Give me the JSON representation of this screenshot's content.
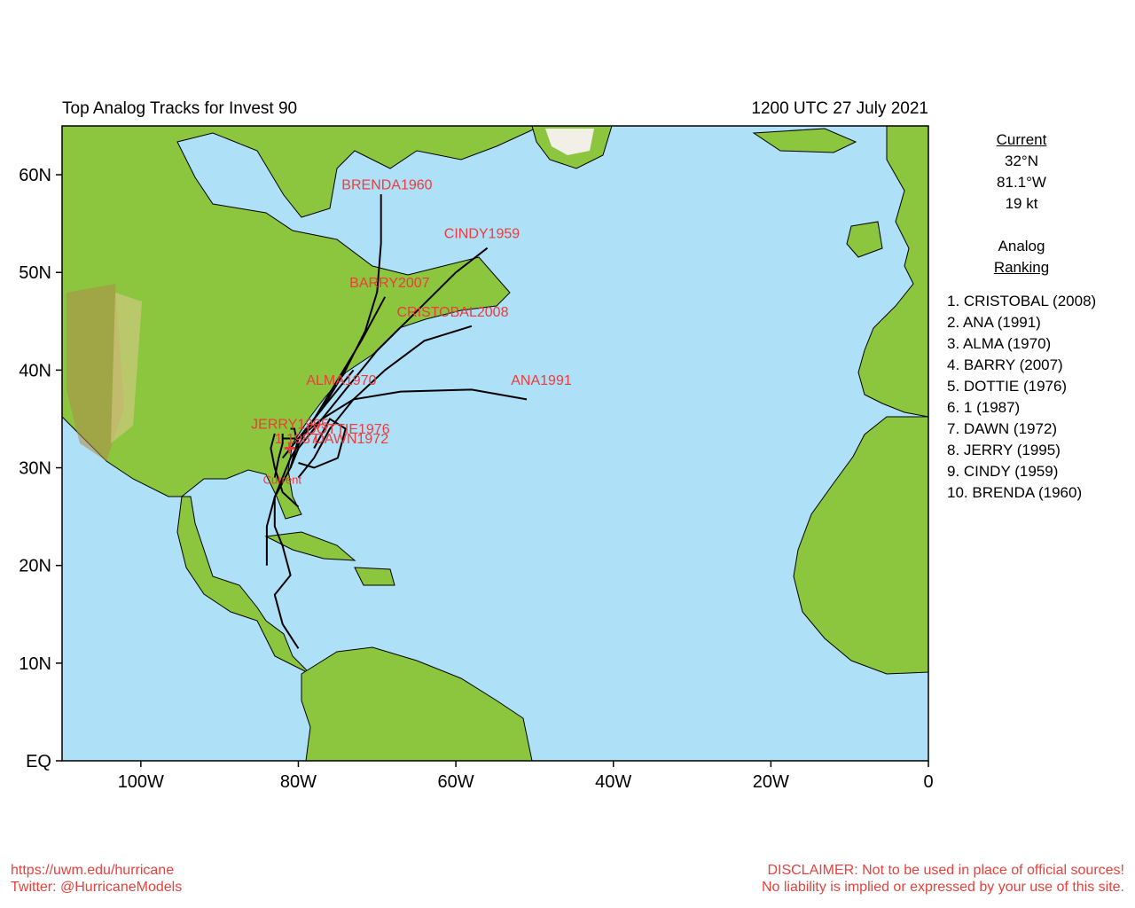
{
  "header": {
    "title": "Top Analog Tracks for Invest 90",
    "datetime": "1200 UTC 27 July 2021"
  },
  "map": {
    "extent": {
      "lon_min": -110,
      "lon_max": 0,
      "lat_min": 0,
      "lat_max": 65
    },
    "lat_ticks": [
      {
        "lat": 60,
        "label": "60N"
      },
      {
        "lat": 50,
        "label": "50N"
      },
      {
        "lat": 40,
        "label": "40N"
      },
      {
        "lat": 30,
        "label": "30N"
      },
      {
        "lat": 20,
        "label": "20N"
      },
      {
        "lat": 10,
        "label": "10N"
      },
      {
        "lat": 0,
        "label": "EQ"
      }
    ],
    "lon_ticks": [
      {
        "lon": -100,
        "label": "100W"
      },
      {
        "lon": -80,
        "label": "80W"
      },
      {
        "lon": -60,
        "label": "60W"
      },
      {
        "lon": -40,
        "label": "40W"
      },
      {
        "lon": -20,
        "label": "20W"
      },
      {
        "lon": 0,
        "label": "0"
      }
    ],
    "colors": {
      "ocean": "#aee0f8",
      "land": "#8cc63f",
      "track": "#000000",
      "label": "#ee3b3b"
    },
    "current_label": "Current",
    "current_position": {
      "lat": 32.0,
      "lon": -81.1
    }
  },
  "tracks": [
    {
      "name": "BRENDA1960",
      "label_at": [
        -74.5,
        58.5
      ],
      "points": [
        [
          -82,
          31
        ],
        [
          -80,
          33
        ],
        [
          -77,
          36
        ],
        [
          -74,
          40
        ],
        [
          -71.5,
          44
        ],
        [
          -70,
          48
        ],
        [
          -69.5,
          53
        ],
        [
          -69.5,
          58
        ]
      ]
    },
    {
      "name": "CINDY1959",
      "label_at": [
        -61.5,
        53.5
      ],
      "points": [
        [
          -82,
          33
        ],
        [
          -80,
          33
        ],
        [
          -77,
          35
        ],
        [
          -74,
          38
        ],
        [
          -70,
          42
        ],
        [
          -65,
          46
        ],
        [
          -60,
          50
        ],
        [
          -56,
          52.5
        ]
      ]
    },
    {
      "name": "BARRY2007",
      "label_at": [
        -73.5,
        48.5
      ],
      "points": [
        [
          -84,
          20
        ],
        [
          -84,
          24
        ],
        [
          -83,
          27
        ],
        [
          -81,
          31
        ],
        [
          -78,
          35
        ],
        [
          -75,
          39
        ],
        [
          -72,
          43
        ],
        [
          -70,
          46
        ],
        [
          -69,
          47.5
        ]
      ]
    },
    {
      "name": "CRISTOBAL2008",
      "label_at": [
        -67.5,
        45.5
      ],
      "points": [
        [
          -80,
          29
        ],
        [
          -78,
          31
        ],
        [
          -76,
          34
        ],
        [
          -73,
          37
        ],
        [
          -69,
          40
        ],
        [
          -64,
          43
        ],
        [
          -58,
          44.5
        ]
      ]
    },
    {
      "name": "ANA1991",
      "label_at": [
        -53,
        38.5
      ],
      "points": [
        [
          -81,
          30
        ],
        [
          -80,
          32
        ],
        [
          -77,
          35
        ],
        [
          -73,
          37
        ],
        [
          -67,
          37.8
        ],
        [
          -58,
          38
        ],
        [
          -51,
          37
        ]
      ]
    },
    {
      "name": "ALMA1970",
      "label_at": [
        -79,
        38.5
      ],
      "points": [
        [
          -80,
          11.5
        ],
        [
          -82,
          14
        ],
        [
          -83,
          17
        ],
        [
          -81,
          19
        ],
        [
          -82,
          22
        ],
        [
          -83,
          24
        ],
        [
          -83,
          27
        ],
        [
          -81,
          30
        ],
        [
          -80,
          33
        ],
        [
          -77,
          36
        ],
        [
          -75,
          38
        ],
        [
          -73,
          40
        ]
      ]
    },
    {
      "name": "DOTTIE1976",
      "label_at": [
        -79,
        33.5
      ],
      "points": [
        [
          -81,
          30
        ],
        [
          -80,
          32
        ],
        [
          -80.5,
          34
        ],
        [
          -81,
          34
        ]
      ]
    },
    {
      "name": "1 1987",
      "label_at": [
        -83,
        32.5
      ],
      "points": [
        [
          -83,
          29
        ],
        [
          -82.5,
          31
        ],
        [
          -82,
          32.5
        ],
        [
          -82,
          33.5
        ]
      ]
    },
    {
      "name": "DAWN1972",
      "label_at": [
        -78,
        32.5
      ],
      "points": [
        [
          -78,
          32
        ],
        [
          -76,
          35
        ],
        [
          -74,
          34
        ],
        [
          -75,
          31
        ],
        [
          -78,
          30
        ],
        [
          -80,
          30.5
        ]
      ]
    },
    {
      "name": "JERRY1995",
      "label_at": [
        -86,
        34.0
      ],
      "points": [
        [
          -80,
          26
        ],
        [
          -82,
          27.5
        ],
        [
          -83,
          30
        ],
        [
          -83.5,
          32
        ],
        [
          -83,
          33.5
        ]
      ]
    }
  ],
  "panel": {
    "current_heading": "Current",
    "lat": "32°N",
    "lon": "81.1°W",
    "wind": "19 kt",
    "analog_heading_1": "Analog",
    "analog_heading_2": "Ranking",
    "rankings": [
      "1.  CRISTOBAL (2008)",
      "2.  ANA (1991)",
      "3.  ALMA (1970)",
      "4.  BARRY (2007)",
      "5.  DOTTIE (1976)",
      "6.  1 (1987)",
      "7.  DAWN (1972)",
      "8.  JERRY (1995)",
      "9.  CINDY (1959)",
      "10. BRENDA (1960)"
    ]
  },
  "footer": {
    "url": "https://uwm.edu/hurricane",
    "twitter": "Twitter: @HurricaneModels",
    "disclaimer_1": "DISCLAIMER: Not to be used in place of official sources!",
    "disclaimer_2": "No liability is implied or expressed by your use of this site."
  }
}
